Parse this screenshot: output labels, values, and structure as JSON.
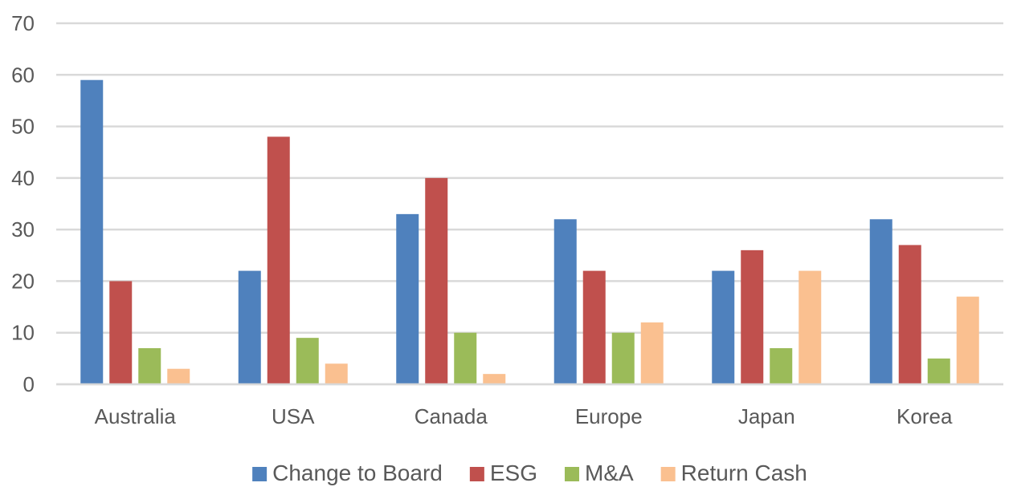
{
  "chart_data": {
    "type": "bar",
    "categories": [
      "Australia",
      "USA",
      "Canada",
      "Europe",
      "Japan",
      "Korea"
    ],
    "series": [
      {
        "name": "Change to Board",
        "color": "#4f81bd",
        "values": [
          59,
          22,
          33,
          32,
          22,
          32
        ]
      },
      {
        "name": "ESG",
        "color": "#c0504d",
        "values": [
          20,
          48,
          40,
          22,
          26,
          27
        ]
      },
      {
        "name": "M&A",
        "color": "#9bbb59",
        "values": [
          7,
          9,
          10,
          10,
          7,
          5
        ]
      },
      {
        "name": "Return Cash",
        "color": "#fac090",
        "values": [
          3,
          4,
          2,
          12,
          22,
          17
        ]
      }
    ],
    "ylim": [
      0,
      70
    ],
    "yticks": [
      0,
      10,
      20,
      30,
      40,
      50,
      60,
      70
    ],
    "grid": true,
    "legend_position": "bottom"
  }
}
